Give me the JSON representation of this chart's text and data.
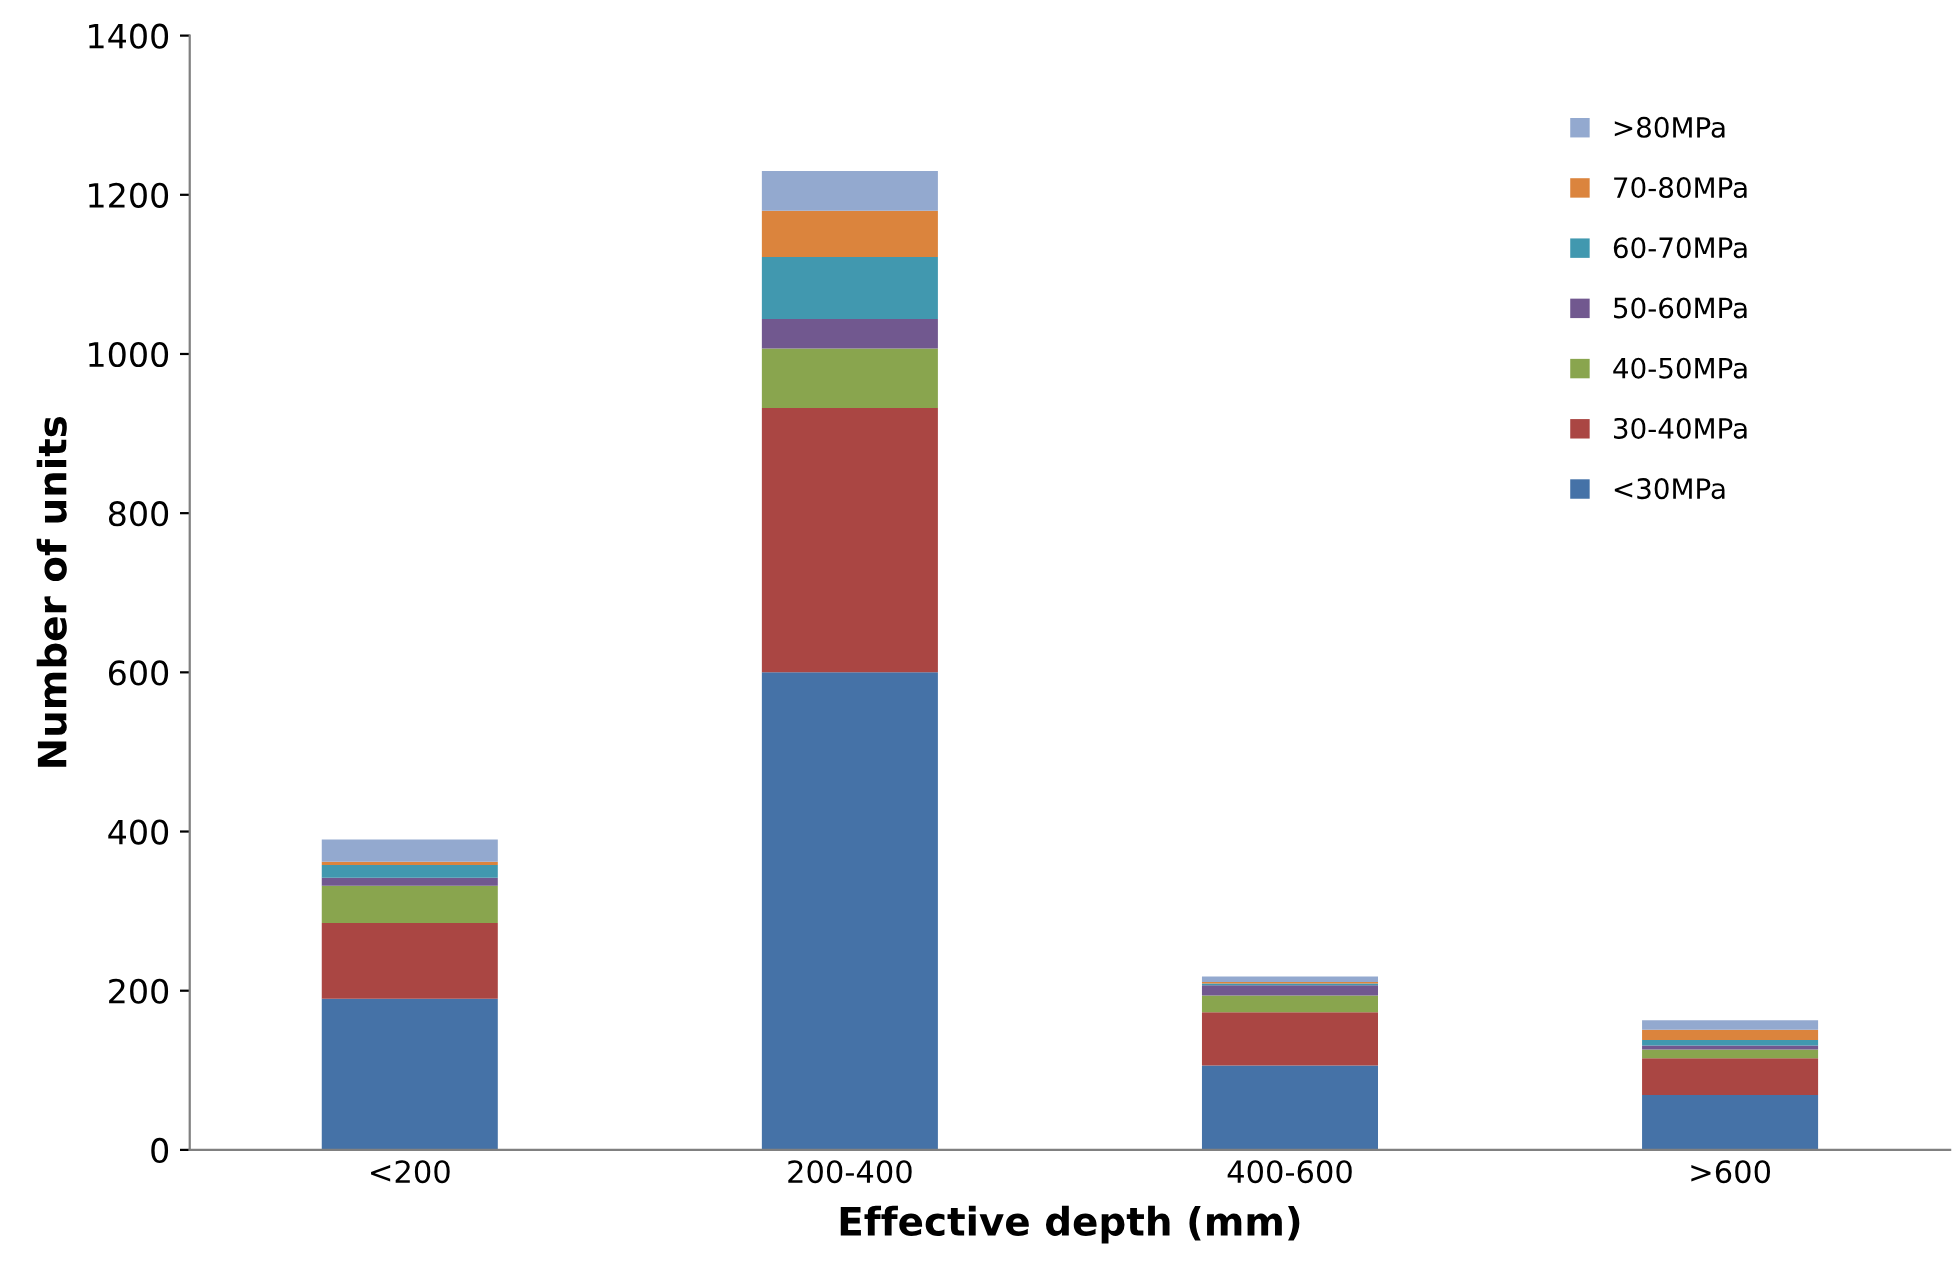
{
  "chart_data": {
    "type": "bar",
    "stacked": true,
    "xlabel": "Effective depth (mm)",
    "ylabel": "Number of units",
    "categories": [
      "<200",
      "200-400",
      "400-600",
      ">600"
    ],
    "series": [
      {
        "name": "<30MPa",
        "color": "#4572a7",
        "values": [
          190,
          600,
          106,
          69
        ]
      },
      {
        "name": "30-40MPa",
        "color": "#aa4643",
        "values": [
          95,
          332,
          67,
          46
        ]
      },
      {
        "name": "40-50MPa",
        "color": "#89a54e",
        "values": [
          47,
          75,
          21,
          11
        ]
      },
      {
        "name": "50-60MPa",
        "color": "#71588f",
        "values": [
          10,
          37,
          13,
          5
        ]
      },
      {
        "name": "60-70MPa",
        "color": "#4198af",
        "values": [
          16,
          78,
          2,
          7
        ]
      },
      {
        "name": "70-80MPa",
        "color": "#db843d",
        "values": [
          4,
          58,
          2,
          13
        ]
      },
      {
        "name": ">80MPa",
        "color": "#93a9cf",
        "values": [
          28,
          50,
          7,
          12
        ]
      }
    ],
    "ylim": [
      0,
      1400
    ],
    "yticks": [
      0,
      200,
      400,
      600,
      800,
      1000,
      1200,
      1400
    ],
    "grid": false,
    "legend": "top right"
  }
}
